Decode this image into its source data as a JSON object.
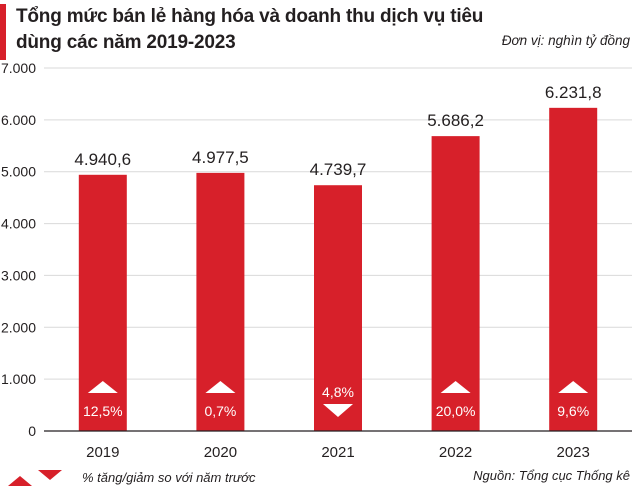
{
  "title": "Tổng mức bán lẻ hàng hóa và doanh thu dịch vụ tiêu dùng các năm 2019-2023",
  "unit": "Đơn vị: nghìn tỷ đồng",
  "legend_text": "% tăng/giảm so với năm trước",
  "source": "Nguồn: Tổng cục Thống kê",
  "colors": {
    "bar": "#d7202a",
    "text": "#231f20",
    "grid": "#d9d9d9"
  },
  "chart_data": {
    "type": "bar",
    "title": "Tổng mức bán lẻ hàng hóa và doanh thu dịch vụ tiêu dùng các năm 2019-2023",
    "categories": [
      "2019",
      "2020",
      "2021",
      "2022",
      "2023"
    ],
    "values": [
      4940.6,
      4977.5,
      4739.7,
      5686.2,
      6231.8
    ],
    "value_labels": [
      "4.940,6",
      "4.977,5",
      "4.739,7",
      "5.686,2",
      "6.231,8"
    ],
    "changes": [
      {
        "label": "12,5%",
        "direction": "up"
      },
      {
        "label": "0,7%",
        "direction": "up"
      },
      {
        "label": "4,8%",
        "direction": "down"
      },
      {
        "label": "20,0%",
        "direction": "up"
      },
      {
        "label": "9,6%",
        "direction": "up"
      }
    ],
    "ylim": [
      0,
      7000
    ],
    "yticks": [
      0,
      1000,
      2000,
      3000,
      4000,
      5000,
      6000,
      7000
    ],
    "ytick_labels": [
      "0",
      "1.000",
      "2.000",
      "3.000",
      "4.000",
      "5.000",
      "6.000",
      "7.000"
    ],
    "grid": true
  }
}
